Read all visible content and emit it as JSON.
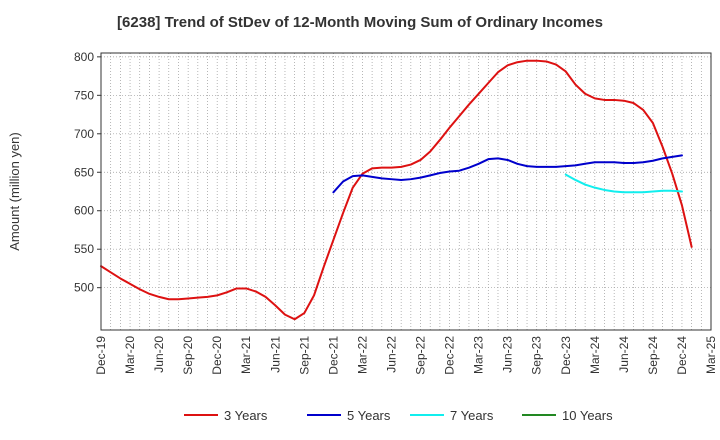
{
  "chart_data": {
    "type": "line",
    "title": "[6238]  Trend of StDev of 12-Month Moving Sum of Ordinary Incomes",
    "xlabel": "",
    "ylabel": "Amount (million yen)",
    "ylim": [
      445,
      805
    ],
    "yticks": [
      500,
      550,
      600,
      650,
      700,
      750,
      800
    ],
    "grid": true,
    "legend_position": "bottom",
    "x_tick_labels": [
      "Dec-19",
      "Mar-20",
      "Jun-20",
      "Sep-20",
      "Dec-20",
      "Mar-21",
      "Jun-21",
      "Sep-21",
      "Dec-21",
      "Mar-22",
      "Jun-22",
      "Sep-22",
      "Dec-22",
      "Mar-23",
      "Jun-23",
      "Sep-23",
      "Dec-23",
      "Mar-24",
      "Jun-24",
      "Sep-24",
      "Dec-24",
      "Mar-25"
    ],
    "series": [
      {
        "name": "3 Years",
        "color": "#dd1111",
        "start_index": 0,
        "values": [
          528,
          520,
          512,
          505,
          498,
          492,
          488,
          485,
          485,
          486,
          487,
          488,
          490,
          494,
          499,
          499,
          495,
          488,
          477,
          465,
          459,
          467,
          490,
          527,
          562,
          597,
          630,
          648,
          655,
          656,
          656,
          657,
          660,
          666,
          677,
          692,
          708,
          723,
          738,
          752,
          766,
          780,
          789,
          793,
          795,
          795,
          794,
          790,
          781,
          764,
          752,
          746,
          744,
          744,
          743,
          740,
          731,
          714,
          683,
          648,
          607,
          553
        ]
      },
      {
        "name": "5 Years",
        "color": "#0000cc",
        "start_index": 24,
        "values": [
          624,
          638,
          645,
          646,
          644,
          642,
          641,
          640,
          641,
          643,
          646,
          649,
          651,
          652,
          656,
          661,
          667,
          668,
          666,
          661,
          658,
          657,
          657,
          657,
          658,
          659,
          661,
          663,
          663,
          663,
          662,
          662,
          663,
          665,
          668,
          670,
          672
        ]
      },
      {
        "name": "7 Years",
        "color": "#11eeee",
        "start_index": 48,
        "values": [
          647,
          640,
          634,
          630,
          627,
          625,
          624,
          624,
          624,
          625,
          626,
          626,
          625
        ]
      },
      {
        "name": "10 Years",
        "color": "#228822",
        "start_index": 0,
        "values": []
      }
    ]
  }
}
